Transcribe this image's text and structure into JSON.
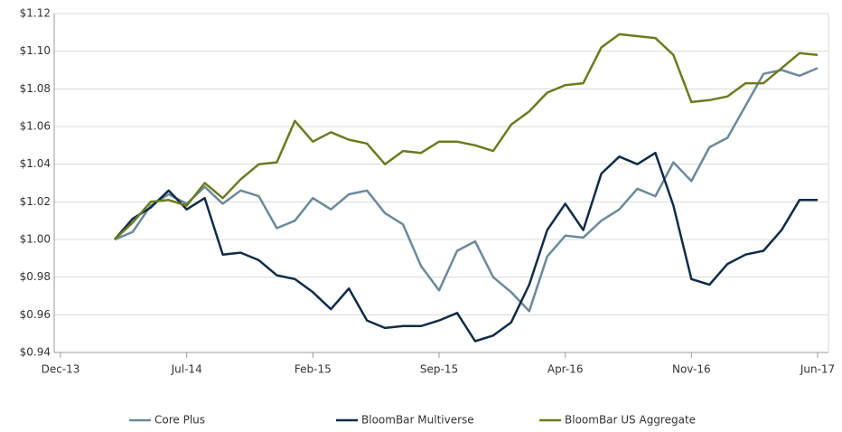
{
  "chart_data": {
    "type": "line",
    "x": [
      "2014-03",
      "2014-04",
      "2014-05",
      "2014-06",
      "2014-07",
      "2014-08",
      "2014-09",
      "2014-10",
      "2014-11",
      "2014-12",
      "2015-01",
      "2015-02",
      "2015-03",
      "2015-04",
      "2015-05",
      "2015-06",
      "2015-07",
      "2015-08",
      "2015-09",
      "2015-10",
      "2015-11",
      "2015-12",
      "2016-01",
      "2016-02",
      "2016-03",
      "2016-04",
      "2016-05",
      "2016-06",
      "2016-07",
      "2016-08",
      "2016-09",
      "2016-10",
      "2016-11",
      "2016-12",
      "2017-01",
      "2017-02",
      "2017-03",
      "2017-04",
      "2017-05",
      "2017-06"
    ],
    "series": [
      {
        "name": "Core Plus",
        "color": "#6b8a9b",
        "values": [
          1.0,
          1.004,
          1.018,
          1.024,
          1.019,
          1.028,
          1.019,
          1.026,
          1.023,
          1.006,
          1.01,
          1.022,
          1.016,
          1.024,
          1.026,
          1.014,
          1.008,
          0.986,
          0.973,
          0.994,
          0.999,
          0.98,
          0.972,
          0.962,
          0.991,
          1.002,
          1.001,
          1.01,
          1.016,
          1.027,
          1.023,
          1.041,
          1.031,
          1.049,
          1.054,
          1.071,
          1.088,
          1.09,
          1.087,
          1.091
        ]
      },
      {
        "name": "BloomBar Multiverse",
        "color": "#0f2c47",
        "values": [
          1.0,
          1.011,
          1.017,
          1.026,
          1.016,
          1.022,
          0.992,
          0.993,
          0.989,
          0.981,
          0.979,
          0.972,
          0.963,
          0.974,
          0.957,
          0.953,
          0.954,
          0.954,
          0.957,
          0.961,
          0.946,
          0.949,
          0.956,
          0.976,
          1.005,
          1.019,
          1.005,
          1.035,
          1.044,
          1.04,
          1.046,
          1.018,
          0.979,
          0.976,
          0.987,
          0.992,
          0.994,
          1.005,
          1.021,
          1.021
        ]
      },
      {
        "name": "BloomBar US Aggregate",
        "color": "#6b7b1f",
        "values": [
          1.0,
          1.009,
          1.02,
          1.021,
          1.018,
          1.03,
          1.022,
          1.032,
          1.04,
          1.041,
          1.063,
          1.052,
          1.057,
          1.053,
          1.051,
          1.04,
          1.047,
          1.046,
          1.052,
          1.052,
          1.05,
          1.047,
          1.061,
          1.068,
          1.078,
          1.082,
          1.083,
          1.102,
          1.109,
          1.108,
          1.107,
          1.098,
          1.073,
          1.074,
          1.076,
          1.083,
          1.083,
          1.091,
          1.099,
          1.098
        ]
      }
    ],
    "xlim": [
      "2013-12",
      "2017-06"
    ],
    "xticks": [
      {
        "value": "2013-12",
        "label": "Dec-13"
      },
      {
        "value": "2014-07",
        "label": "Jul-14"
      },
      {
        "value": "2015-02",
        "label": "Feb-15"
      },
      {
        "value": "2015-09",
        "label": "Sep-15"
      },
      {
        "value": "2016-04",
        "label": "Apr-16"
      },
      {
        "value": "2016-11",
        "label": "Nov-16"
      },
      {
        "value": "2017-06",
        "label": "Jun-17"
      }
    ],
    "ylim": [
      0.94,
      1.12
    ],
    "yticks": [
      {
        "value": 0.94,
        "label": "$0.94"
      },
      {
        "value": 0.96,
        "label": "$0.96"
      },
      {
        "value": 0.98,
        "label": "$0.98"
      },
      {
        "value": 1.0,
        "label": "$1.00"
      },
      {
        "value": 1.02,
        "label": "$1.02"
      },
      {
        "value": 1.04,
        "label": "$1.04"
      },
      {
        "value": 1.06,
        "label": "$1.06"
      },
      {
        "value": 1.08,
        "label": "$1.08"
      },
      {
        "value": 1.1,
        "label": "$1.10"
      },
      {
        "value": 1.12,
        "label": "$1.12"
      }
    ],
    "grid": true,
    "legend": "bottom"
  }
}
